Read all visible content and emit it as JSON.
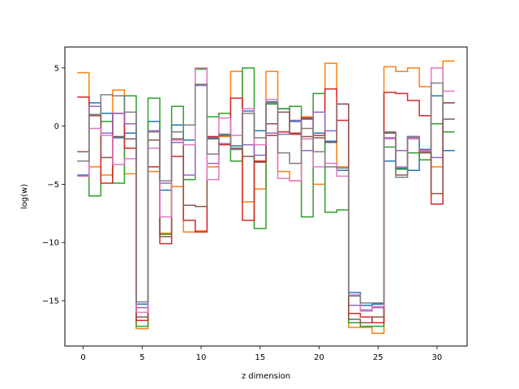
{
  "chart_data": {
    "type": "line",
    "drawstyle": "steps-mid",
    "title": "",
    "xlabel": "z dimension",
    "ylabel": "log(w)",
    "xlim": [
      -1.55,
      32.55
    ],
    "ylim": [
      -18.9,
      6.8
    ],
    "xticks": [
      0,
      5,
      10,
      15,
      20,
      25,
      30
    ],
    "yticks": [
      -15,
      -10,
      -5,
      0,
      5
    ],
    "grid": false,
    "x": [
      0,
      1,
      2,
      3,
      4,
      5,
      6,
      7,
      8,
      9,
      10,
      11,
      12,
      13,
      14,
      15,
      16,
      17,
      18,
      19,
      20,
      21,
      22,
      23,
      24,
      25,
      26,
      27,
      28,
      29,
      30,
      31
    ],
    "series": [
      {
        "color": "#1f77b4",
        "values": [
          -4.2,
          2.0,
          1.1,
          -1.0,
          -0.6,
          -15.3,
          0.4,
          -5.5,
          0.1,
          -1.2,
          3.5,
          -1.0,
          -0.8,
          -1.7,
          1.3,
          -0.4,
          2.1,
          1.5,
          0.4,
          0.6,
          -0.6,
          -1.3,
          -3.8,
          -14.3,
          -15.4,
          -15.3,
          -3.0,
          -3.6,
          -3.8,
          -2.0,
          2.6,
          -2.1
        ]
      },
      {
        "color": "#ff7f0e",
        "values": [
          4.6,
          -3.5,
          -4.2,
          3.1,
          -4.1,
          -17.4,
          -3.9,
          -9.2,
          -5.2,
          -9.1,
          -9.0,
          -3.5,
          -0.9,
          4.7,
          -6.5,
          -5.4,
          4.7,
          -3.9,
          -4.7,
          0.8,
          -5.0,
          5.4,
          -3.5,
          -17.3,
          -17.3,
          -17.8,
          5.1,
          4.7,
          5.0,
          3.4,
          -3.5,
          5.6
        ]
      },
      {
        "color": "#2ca02c",
        "values": [
          -3.0,
          -6.0,
          0.4,
          -4.9,
          2.6,
          -17.2,
          2.4,
          -9.3,
          1.7,
          -4.6,
          4.9,
          0.8,
          1.1,
          -3.0,
          5.0,
          -8.8,
          1.9,
          1.5,
          1.7,
          -7.8,
          2.8,
          -7.4,
          -7.2,
          -16.9,
          -17.2,
          -17.2,
          -1.8,
          -3.7,
          -2.3,
          -2.9,
          0.2,
          -0.5
        ]
      },
      {
        "color": "#d62728",
        "values": [
          2.5,
          0.9,
          -4.9,
          1.1,
          -1.9,
          -16.7,
          -3.5,
          -10.1,
          -2.6,
          -8.1,
          -9.1,
          -0.9,
          -1.6,
          2.4,
          -8.1,
          -3.0,
          -0.8,
          -0.5,
          -0.7,
          0.7,
          -0.8,
          3.2,
          0.5,
          -16.1,
          -16.4,
          -16.9,
          2.9,
          2.8,
          2.2,
          0.9,
          -6.7,
          0.6
        ]
      },
      {
        "color": "#9467bd",
        "values": [
          -4.3,
          1.7,
          -0.6,
          1.1,
          0.2,
          -15.6,
          -0.4,
          -4.9,
          -1.4,
          -4.2,
          3.5,
          -3.2,
          -1.5,
          -2.0,
          -1.6,
          -2.5,
          -0.6,
          -0.7,
          0.5,
          -2.1,
          1.2,
          -0.4,
          1.9,
          -15.4,
          -15.8,
          -15.6,
          -1.0,
          -2.1,
          -1.0,
          -2.1,
          -2.7,
          2.0
        ]
      },
      {
        "color": "#8c564b",
        "values": [
          -2.2,
          0.9,
          -2.7,
          -0.9,
          -1.1,
          -16.4,
          -1.2,
          -9.5,
          -1.1,
          -6.8,
          -6.9,
          -1.1,
          -0.7,
          -1.9,
          -2.6,
          -3.1,
          0.2,
          1.2,
          -0.6,
          -0.9,
          -1.0,
          -1.4,
          1.9,
          -16.6,
          -16.9,
          -16.4,
          -0.6,
          -4.2,
          -0.9,
          -2.3,
          -5.8,
          2.0
        ]
      },
      {
        "color": "#e377c2",
        "values": [
          -4.3,
          -0.2,
          -0.8,
          -3.3,
          -2.8,
          -16.0,
          -1.9,
          -7.8,
          -1.2,
          -1.6,
          5.0,
          -4.6,
          0.7,
          -0.8,
          1.5,
          -1.6,
          2.3,
          -4.5,
          -4.7,
          -1.1,
          -3.5,
          -3.2,
          -4.3,
          -14.5,
          -15.9,
          -15.5,
          -1.1,
          -3.5,
          -1.1,
          -2.1,
          5.0,
          3.0
        ]
      },
      {
        "color": "#7f7f7f",
        "values": [
          -3.0,
          1.0,
          2.7,
          2.6,
          1.2,
          -15.1,
          -0.5,
          -4.7,
          -0.5,
          0.1,
          3.6,
          -2.4,
          -0.7,
          -2.0,
          1.1,
          -1.0,
          2.0,
          -2.3,
          -3.2,
          -0.2,
          -2.2,
          -3.5,
          -3.6,
          -14.6,
          -15.2,
          -15.2,
          -0.5,
          -4.4,
          -0.9,
          -2.2,
          3.7,
          0.6
        ]
      }
    ]
  }
}
